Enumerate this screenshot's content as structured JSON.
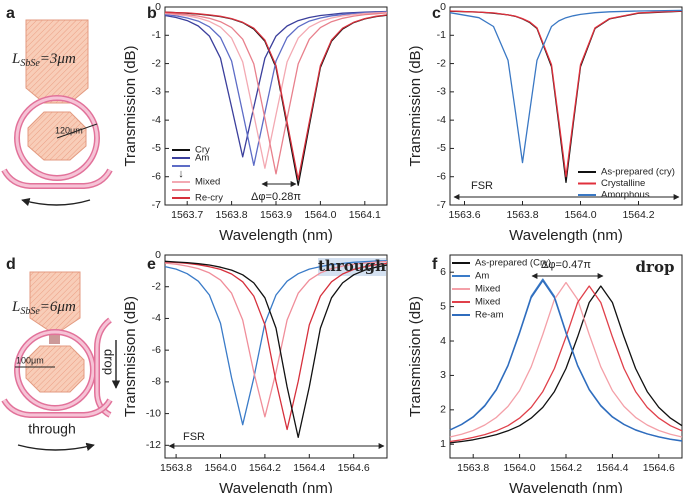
{
  "diagrams": {
    "a": {
      "panel": "a",
      "symbol": "L",
      "subscript": "SbSe",
      "value": "=3μm",
      "scale": "120μm"
    },
    "d": {
      "panel": "d",
      "symbol": "L",
      "subscript": "SbSe",
      "value": "=6μm",
      "scale": "100μm",
      "drop": "drop",
      "through": "through"
    }
  },
  "chart_data": [
    {
      "type": "line",
      "panel": "b",
      "xlabel": "Wavelength (nm)",
      "ylabel": "Transmission (dB)",
      "xlim": [
        1563.65,
        1564.15
      ],
      "ylim": [
        -7,
        0
      ],
      "xticks": [
        1563.7,
        1563.8,
        1563.9,
        {
          "value": 1564.0,
          "label": "1564.0"
        },
        1564.1
      ],
      "yticks": [
        -7,
        -6,
        -5,
        -4,
        -3,
        -2,
        -1,
        0
      ],
      "legend": "lower left",
      "annotations": [
        "Δφ=0.28π",
        "↓"
      ],
      "x": [
        1563.65,
        1563.675,
        1563.7,
        1563.725,
        1563.75,
        1563.775,
        1563.8,
        1563.825,
        1563.85,
        1563.875,
        1563.9,
        1563.925,
        1563.95,
        1563.975,
        1564.0,
        1564.025,
        1564.05,
        1564.075,
        1564.1,
        1564.125,
        1564.15
      ],
      "series": [
        {
          "name": "Cry",
          "color": "#111111",
          "values": [
            -0.18,
            -0.2,
            -0.22,
            -0.25,
            -0.29,
            -0.34,
            -0.42,
            -0.55,
            -0.78,
            -1.21,
            -2.14,
            -4.2,
            -6.3,
            -4.2,
            -2.14,
            -1.21,
            -0.78,
            -0.55,
            -0.42,
            -0.34,
            -0.29
          ]
        },
        {
          "name": "Am",
          "color": "#3b3f9c",
          "values": [
            -0.3,
            -0.37,
            -0.48,
            -0.67,
            -1.03,
            -1.81,
            -3.54,
            -5.3,
            -3.54,
            -1.81,
            -1.03,
            -0.67,
            -0.48,
            -0.37,
            -0.3,
            -0.26,
            -0.22,
            -0.2,
            -0.18,
            -0.17,
            -0.16
          ]
        },
        {
          "name": null,
          "color": "#5d6cc6",
          "values": [
            -0.27,
            -0.31,
            -0.39,
            -0.5,
            -0.7,
            -1.08,
            -1.91,
            -3.74,
            -5.6,
            -3.74,
            -1.91,
            -1.08,
            -0.7,
            -0.5,
            -0.39,
            -0.31,
            -0.27,
            -0.23,
            -0.2,
            -0.19,
            -0.17
          ]
        },
        {
          "name": "Mixed",
          "color": "#f3a9b2",
          "values": [
            -0.23,
            -0.27,
            -0.31,
            -0.39,
            -0.51,
            -0.71,
            -1.1,
            -1.94,
            -3.81,
            -5.7,
            -3.81,
            -1.94,
            -1.1,
            -0.71,
            -0.51,
            -0.39,
            -0.31,
            -0.27,
            -0.23,
            -0.21,
            -0.19
          ]
        },
        {
          "name": null,
          "color": "#e8808c",
          "values": [
            -0.21,
            -0.24,
            -0.27,
            -0.32,
            -0.4,
            -0.52,
            -0.73,
            -1.14,
            -2.01,
            -3.94,
            -5.9,
            -3.94,
            -2.01,
            -1.14,
            -0.73,
            -0.52,
            -0.4,
            -0.32,
            -0.27,
            -0.24,
            -0.21
          ]
        },
        {
          "name": "Re-cry",
          "color": "#d6303c",
          "values": [
            -0.18,
            -0.2,
            -0.21,
            -0.24,
            -0.28,
            -0.33,
            -0.41,
            -0.54,
            -0.75,
            -1.17,
            -2.07,
            -4.07,
            -6.1,
            -4.07,
            -2.07,
            -1.17,
            -0.75,
            -0.54,
            -0.41,
            -0.33,
            -0.28
          ]
        }
      ]
    },
    {
      "type": "line",
      "panel": "c",
      "xlabel": "Wavelength (nm)",
      "ylabel": "Transmission (dB)",
      "xlim": [
        1563.55,
        1564.35
      ],
      "ylim": [
        -7,
        0
      ],
      "xticks": [
        1563.6,
        1563.8,
        {
          "value": 1564.0,
          "label": "1564.0"
        },
        1564.2
      ],
      "yticks": [
        -7,
        -6,
        -5,
        -4,
        -3,
        -2,
        -1,
        0
      ],
      "legend": "lower right",
      "annotations": [
        "FSR"
      ],
      "x": [
        1563.55,
        1563.65,
        1563.7,
        1563.75,
        1563.775,
        1563.8,
        1563.825,
        1563.85,
        1563.9,
        1563.925,
        1563.95,
        1563.975,
        1564.0,
        1564.05,
        1564.1,
        1564.2,
        1564.35
      ],
      "series": [
        {
          "name": "As-prepared (cry)",
          "color": "#111111",
          "values": [
            -0.15,
            -0.18,
            -0.22,
            -0.28,
            -0.33,
            -0.42,
            -0.55,
            -0.76,
            -2.11,
            -4.14,
            -6.2,
            -4.14,
            -2.11,
            -0.76,
            -0.42,
            -0.22,
            -0.15
          ]
        },
        {
          "name": "Crystalline",
          "color": "#e0303c",
          "values": [
            -0.14,
            -0.18,
            -0.21,
            -0.28,
            -0.32,
            -0.41,
            -0.53,
            -0.74,
            -2.04,
            -4.01,
            -6.0,
            -4.01,
            -2.04,
            -0.74,
            -0.41,
            -0.21,
            -0.14
          ]
        },
        {
          "name": "Amorphous",
          "color": "#3a78c4",
          "values": [
            -0.2,
            -0.38,
            -0.69,
            -1.88,
            -3.67,
            -5.5,
            -3.67,
            -1.88,
            -0.69,
            -0.49,
            -0.38,
            -0.31,
            -0.26,
            -0.2,
            -0.17,
            -0.14,
            -0.12
          ]
        }
      ]
    },
    {
      "type": "line",
      "panel": "e",
      "xlabel": "Wavelength (nm)",
      "ylabel": "Transmisison (dB)",
      "xlim": [
        1563.75,
        1564.75
      ],
      "ylim": [
        -12.8,
        0
      ],
      "xticks": [
        1563.8,
        {
          "value": 1564.0,
          "label": "1564.0"
        },
        1564.2,
        1564.4,
        1564.6
      ],
      "yticks": [
        -12,
        -10,
        -8,
        -6,
        -4,
        -2,
        0
      ],
      "annotations": [
        "through",
        "FSR"
      ],
      "x": [
        1563.75,
        1563.8,
        1563.85,
        1563.9,
        1563.95,
        1564.0,
        1564.05,
        1564.1,
        1564.15,
        1564.2,
        1564.25,
        1564.3,
        1564.35,
        1564.4,
        1564.45,
        1564.5,
        1564.55,
        1564.6,
        1564.65,
        1564.7,
        1564.75
      ],
      "series": [
        {
          "name": null,
          "color": "#3a7bc8",
          "values": [
            -0.73,
            -0.89,
            -1.18,
            -1.65,
            -2.52,
            -4.3,
            -7.75,
            -10.7,
            -7.75,
            -4.3,
            -2.52,
            -1.65,
            -1.18,
            -0.89,
            -0.73,
            -0.6,
            -0.53,
            -0.46,
            -0.42,
            -0.38,
            -0.36
          ]
        },
        {
          "name": null,
          "color": "#f08e9a",
          "values": [
            -0.51,
            -0.58,
            -0.7,
            -0.86,
            -1.13,
            -1.58,
            -2.41,
            -4.1,
            -7.39,
            -10.2,
            -7.39,
            -4.1,
            -2.41,
            -1.58,
            -1.13,
            -0.86,
            -0.7,
            -0.58,
            -0.51,
            -0.45,
            -0.41
          ]
        },
        {
          "name": null,
          "color": "#d6303c",
          "values": [
            -0.43,
            -0.47,
            -0.53,
            -0.61,
            -0.74,
            -0.91,
            -1.2,
            -1.69,
            -2.59,
            -4.41,
            -7.97,
            -11.0,
            -7.97,
            -4.41,
            -2.59,
            -1.69,
            -1.2,
            -0.91,
            -0.74,
            -0.61,
            -0.53
          ]
        },
        {
          "name": null,
          "color": "#111111",
          "values": [
            -0.4,
            -0.44,
            -0.48,
            -0.55,
            -0.63,
            -0.77,
            -0.95,
            -1.25,
            -1.76,
            -2.7,
            -4.61,
            -8.32,
            -11.5,
            -8.32,
            -4.61,
            -2.7,
            -1.76,
            -1.25,
            -0.95,
            -0.77,
            -0.63
          ]
        }
      ]
    },
    {
      "type": "line",
      "panel": "f",
      "xlabel": "Wavelength (nm)",
      "ylabel": "Transmission (dB)",
      "xlim": [
        1563.7,
        1564.7
      ],
      "ylim": [
        0.6,
        6.5
      ],
      "xticks": [
        1563.8,
        {
          "value": 1564.0,
          "label": "1564.0"
        },
        1564.2,
        1564.4,
        1564.6
      ],
      "yticks": [
        1,
        2,
        3,
        4,
        5,
        6
      ],
      "legend": "upper left",
      "annotations": [
        "Δφ=0.47π",
        "drop"
      ],
      "x": [
        1563.7,
        1563.75,
        1563.8,
        1563.85,
        1563.9,
        1563.95,
        1564.0,
        1564.05,
        1564.1,
        1564.15,
        1564.2,
        1564.25,
        1564.3,
        1564.35,
        1564.4,
        1564.45,
        1564.5,
        1564.55,
        1564.6,
        1564.65,
        1564.7
      ],
      "series": [
        {
          "name": "As-prepared (Cry)",
          "color": "#111111",
          "values": [
            1.04,
            1.08,
            1.13,
            1.2,
            1.28,
            1.39,
            1.54,
            1.76,
            2.07,
            2.53,
            3.2,
            4.12,
            5.12,
            5.6,
            5.12,
            4.12,
            3.2,
            2.53,
            2.07,
            1.76,
            1.54
          ]
        },
        {
          "name": "Am",
          "color": "#3a7bc8",
          "values": [
            1.42,
            1.58,
            1.8,
            2.13,
            2.6,
            3.3,
            4.26,
            5.3,
            5.8,
            5.3,
            4.26,
            3.3,
            2.6,
            2.13,
            1.8,
            1.58,
            1.42,
            1.3,
            1.22,
            1.15,
            1.1
          ]
        },
        {
          "name": "Mixed",
          "color": "#f4a0a8",
          "values": [
            1.21,
            1.29,
            1.4,
            1.56,
            1.78,
            2.1,
            2.56,
            3.25,
            4.19,
            5.21,
            5.7,
            5.21,
            4.19,
            3.25,
            2.56,
            2.1,
            1.78,
            1.56,
            1.4,
            1.29,
            1.21
          ]
        },
        {
          "name": "Mixed",
          "color": "#e0404a",
          "values": [
            1.08,
            1.13,
            1.2,
            1.28,
            1.39,
            1.54,
            1.76,
            2.07,
            2.53,
            3.2,
            4.12,
            5.12,
            5.6,
            5.12,
            4.12,
            3.2,
            2.53,
            2.07,
            1.76,
            1.54,
            1.39
          ]
        },
        {
          "name": "Re-am",
          "color": "#2f6cbd",
          "values": [
            1.41,
            1.57,
            1.79,
            2.11,
            2.58,
            3.28,
            4.23,
            5.26,
            5.75,
            5.26,
            4.23,
            3.28,
            2.58,
            2.11,
            1.79,
            1.57,
            1.41,
            1.3,
            1.21,
            1.14,
            1.09
          ]
        }
      ]
    }
  ]
}
